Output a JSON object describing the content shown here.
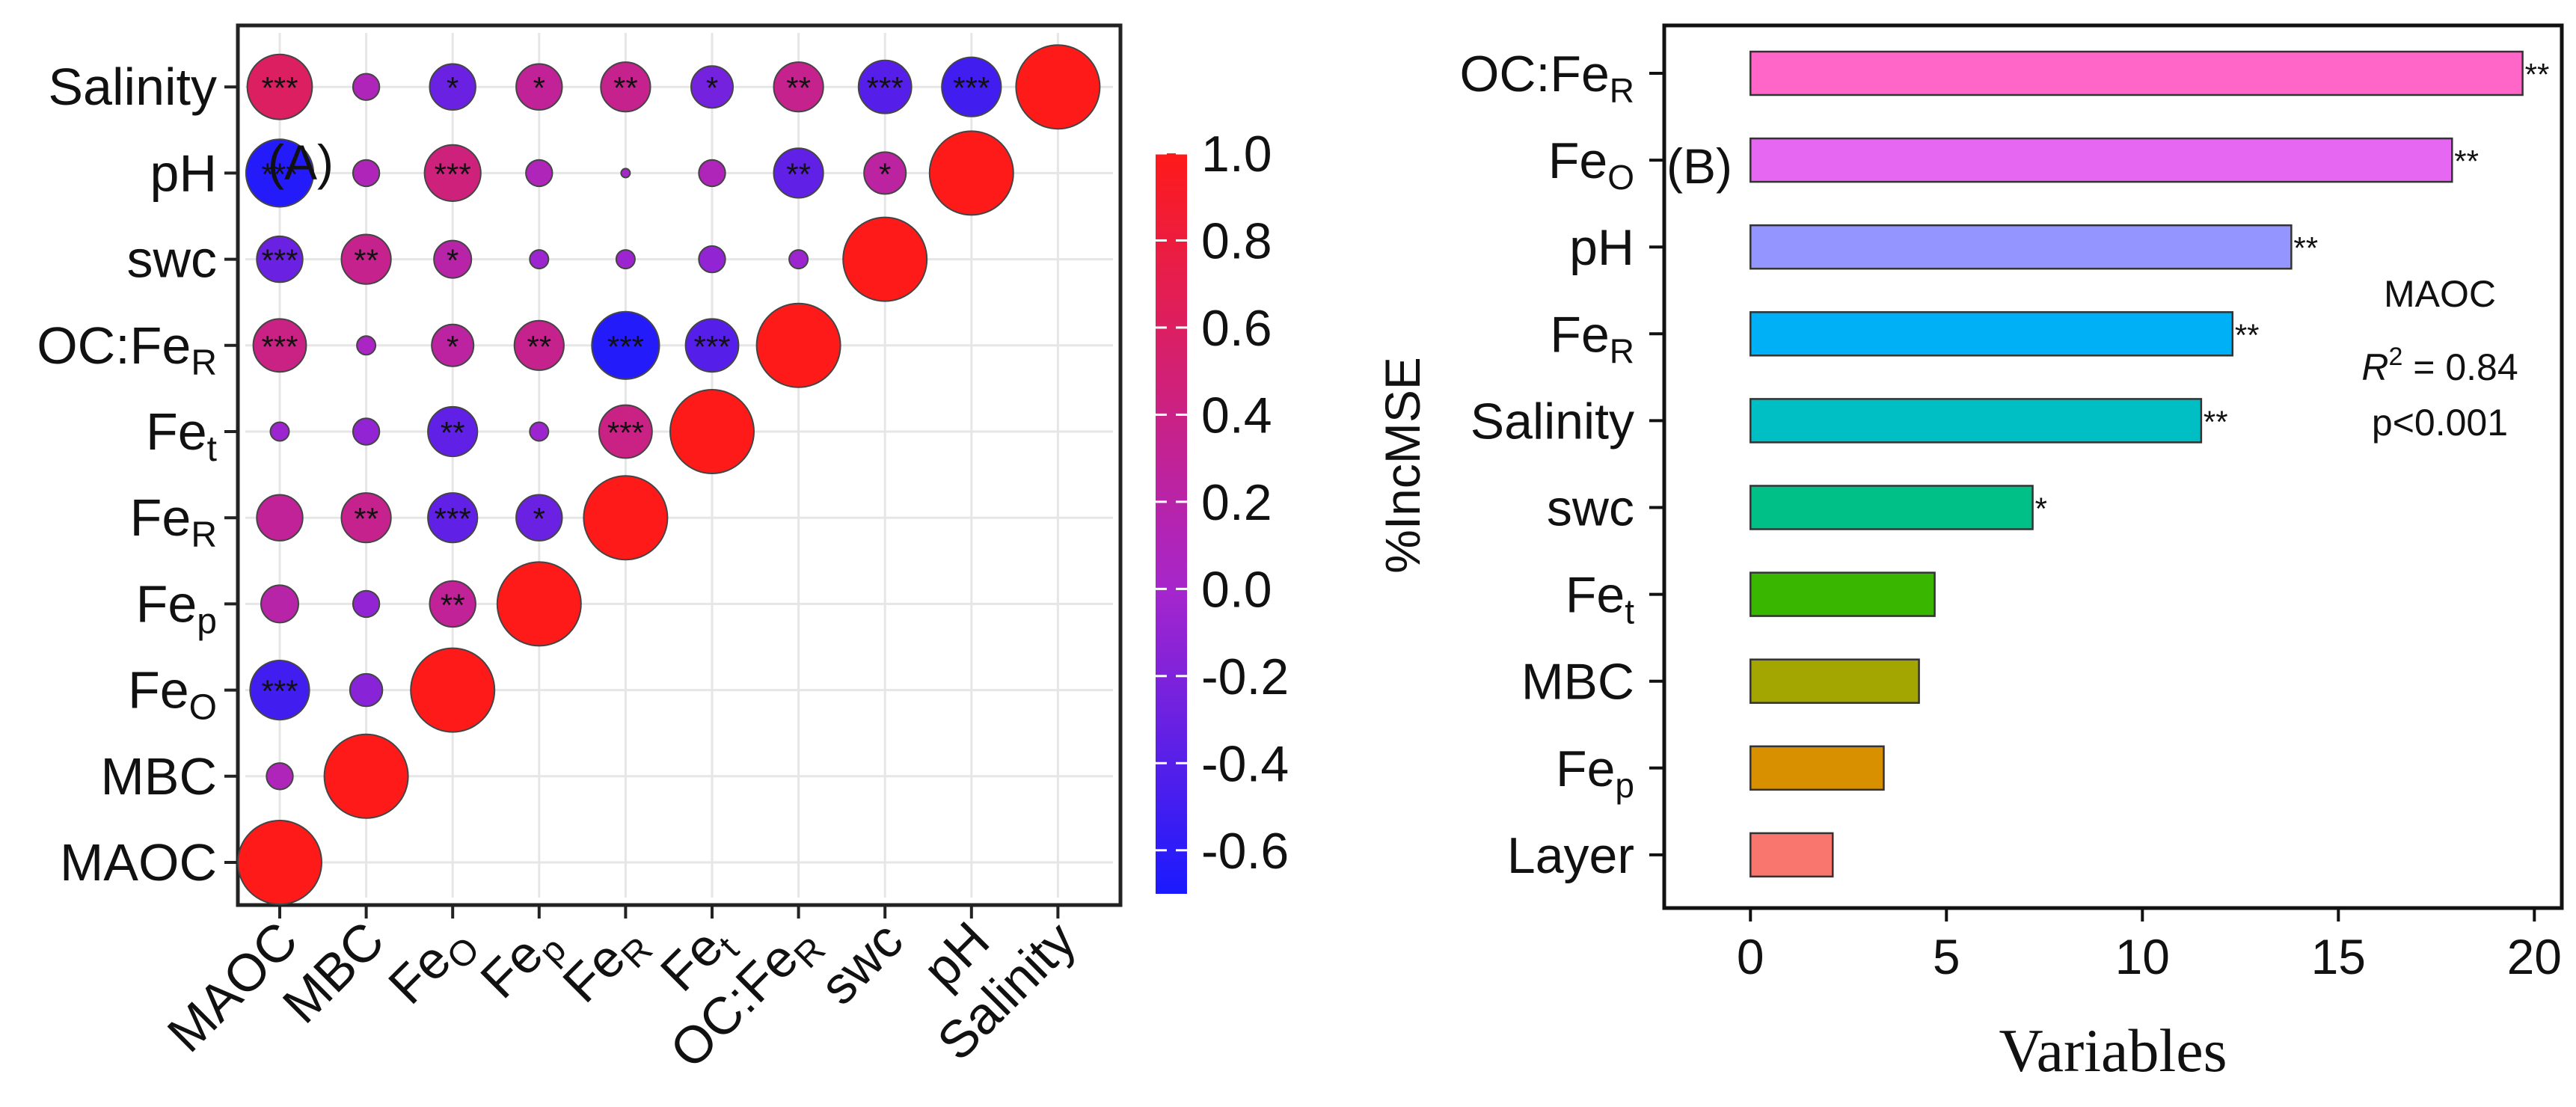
{
  "chart_data": [
    {
      "type": "heatmap",
      "panel_label": "(A)",
      "variables": [
        "MAOC",
        "MBC",
        "FeO",
        "Fep",
        "FeR",
        "Fet",
        "OC:FeR",
        "swc",
        "pH",
        "Salinity"
      ],
      "labels": [
        {
          "base": "MAOC",
          "sub": ""
        },
        {
          "base": "MBC",
          "sub": ""
        },
        {
          "base": "Fe",
          "sub": "O"
        },
        {
          "base": "Fe",
          "sub": "p"
        },
        {
          "base": "Fe",
          "sub": "R"
        },
        {
          "base": "Fe",
          "sub": "t"
        },
        {
          "base": "OC:Fe",
          "sub": "R"
        },
        {
          "base": "swc",
          "sub": ""
        },
        {
          "base": "pH",
          "sub": ""
        },
        {
          "base": "Salinity",
          "sub": ""
        }
      ],
      "matrix": [
        [
          1.0,
          0.1,
          -0.5,
          0.2,
          0.3,
          -0.05,
          0.4,
          -0.3,
          -0.65,
          0.6
        ],
        [
          0.1,
          1.0,
          -0.15,
          -0.1,
          0.35,
          -0.1,
          0.05,
          0.35,
          0.1,
          0.1
        ],
        [
          -0.5,
          -0.15,
          1.0,
          0.3,
          -0.35,
          -0.35,
          0.25,
          0.2,
          0.45,
          -0.3
        ],
        [
          0.2,
          -0.1,
          0.3,
          1.0,
          -0.3,
          -0.05,
          0.35,
          -0.05,
          0.1,
          0.3
        ],
        [
          0.3,
          0.35,
          -0.35,
          -0.3,
          1.0,
          0.4,
          -0.65,
          -0.05,
          0.0,
          0.35
        ],
        [
          -0.05,
          -0.1,
          -0.35,
          -0.05,
          0.4,
          1.0,
          -0.4,
          -0.1,
          0.1,
          -0.25
        ],
        [
          0.4,
          0.05,
          0.25,
          0.35,
          -0.65,
          -0.4,
          1.0,
          -0.05,
          -0.35,
          0.35
        ],
        [
          -0.3,
          0.35,
          0.2,
          -0.05,
          -0.05,
          -0.1,
          -0.05,
          1.0,
          0.25,
          -0.4
        ],
        [
          -0.65,
          0.1,
          0.45,
          0.1,
          0.0,
          0.1,
          -0.35,
          0.25,
          1.0,
          -0.5
        ],
        [
          0.6,
          0.1,
          -0.3,
          0.3,
          0.35,
          -0.25,
          0.35,
          -0.4,
          -0.5,
          1.0
        ]
      ],
      "significance": [
        {
          "row": "FeO",
          "col": "MAOC",
          "stars": "***"
        },
        {
          "row": "pH",
          "col": "MAOC",
          "stars": "***"
        },
        {
          "row": "swc",
          "col": "MAOC",
          "stars": "***"
        },
        {
          "row": "OC:FeR",
          "col": "MAOC",
          "stars": "***"
        },
        {
          "row": "Salinity",
          "col": "MAOC",
          "stars": "***"
        },
        {
          "row": "FeR",
          "col": "MBC",
          "stars": "**"
        },
        {
          "row": "swc",
          "col": "MBC",
          "stars": "**"
        },
        {
          "row": "Fep",
          "col": "FeO",
          "stars": "**"
        },
        {
          "row": "FeR",
          "col": "FeO",
          "stars": "***"
        },
        {
          "row": "Fet",
          "col": "FeO",
          "stars": "**"
        },
        {
          "row": "OC:FeR",
          "col": "FeO",
          "stars": "*"
        },
        {
          "row": "swc",
          "col": "FeO",
          "stars": "*"
        },
        {
          "row": "pH",
          "col": "FeO",
          "stars": "***"
        },
        {
          "row": "Salinity",
          "col": "FeO",
          "stars": "*"
        },
        {
          "row": "FeR",
          "col": "Fep",
          "stars": "*"
        },
        {
          "row": "OC:FeR",
          "col": "Fep",
          "stars": "**"
        },
        {
          "row": "Salinity",
          "col": "Fep",
          "stars": "*"
        },
        {
          "row": "Fet",
          "col": "FeR",
          "stars": "***"
        },
        {
          "row": "OC:FeR",
          "col": "FeR",
          "stars": "***"
        },
        {
          "row": "Salinity",
          "col": "FeR",
          "stars": "**"
        },
        {
          "row": "OC:FeR",
          "col": "Fet",
          "stars": "***"
        },
        {
          "row": "Salinity",
          "col": "Fet",
          "stars": "*"
        },
        {
          "row": "pH",
          "col": "OC:FeR",
          "stars": "**"
        },
        {
          "row": "Salinity",
          "col": "OC:FeR",
          "stars": "**"
        },
        {
          "row": "pH",
          "col": "swc",
          "stars": "*"
        },
        {
          "row": "Salinity",
          "col": "swc",
          "stars": "***"
        },
        {
          "row": "Salinity",
          "col": "pH",
          "stars": "***"
        }
      ],
      "colorbar": {
        "range": [
          -0.7,
          1.0
        ],
        "ticks": [
          "1.0",
          "0.8",
          "0.6",
          "0.4",
          "0.2",
          "0.0",
          "-0.2",
          "-0.4",
          "-0.6"
        ],
        "tick_values": [
          1.0,
          0.8,
          0.6,
          0.4,
          0.2,
          0.0,
          -0.2,
          -0.4,
          -0.6
        ],
        "colors": {
          "low": "#1a1aff",
          "mid": "#a626cc",
          "high": "#ff1a1a"
        }
      },
      "layout": "lower-left triangle",
      "grid": true
    },
    {
      "type": "bar",
      "orientation": "horizontal",
      "panel_label": "(B)",
      "categories": [
        "OC:FeR",
        "FeO",
        "pH",
        "FeR",
        "Salinity",
        "swc",
        "Fet",
        "MBC",
        "Fep",
        "Layer"
      ],
      "category_labels": [
        {
          "base": "OC:Fe",
          "sub": "R"
        },
        {
          "base": "Fe",
          "sub": "O"
        },
        {
          "base": "pH",
          "sub": ""
        },
        {
          "base": "Fe",
          "sub": "R"
        },
        {
          "base": "Salinity",
          "sub": ""
        },
        {
          "base": "swc",
          "sub": ""
        },
        {
          "base": "Fe",
          "sub": "t"
        },
        {
          "base": "MBC",
          "sub": ""
        },
        {
          "base": "Fe",
          "sub": "p"
        },
        {
          "base": "Layer",
          "sub": ""
        }
      ],
      "values": [
        19.7,
        17.9,
        13.8,
        12.3,
        11.5,
        7.2,
        4.7,
        4.3,
        3.4,
        2.1
      ],
      "significance": [
        "**",
        "**",
        "**",
        "**",
        "**",
        "*",
        "",
        "",
        "",
        ""
      ],
      "colors": [
        "#ff66c8",
        "#e667f2",
        "#9595ff",
        "#00b0f6",
        "#00bfc4",
        "#00c087",
        "#39b600",
        "#a3a500",
        "#d89000",
        "#f8766d"
      ],
      "xlabel": "Variables",
      "ylabel": "%IncMSE",
      "xlim": [
        -2.2,
        20.7
      ],
      "xticks": [
        0,
        5,
        10,
        15,
        20
      ],
      "annotation": {
        "title": "MAOC",
        "r2_prefix": "R",
        "r2_sup": "2",
        "r2_value": " = 0.84",
        "p_text": "p<0.001"
      }
    }
  ]
}
